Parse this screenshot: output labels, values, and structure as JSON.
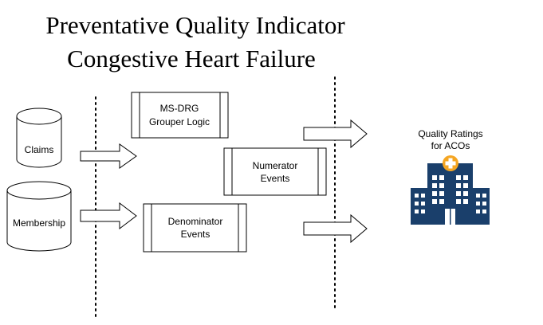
{
  "title": {
    "line1": "Preventative Quality Indicator",
    "line2": "Congestive Heart Failure"
  },
  "inputs": {
    "claims": "Claims",
    "membership": "Membership"
  },
  "processes": {
    "grouper": {
      "line1": "MS-DRG",
      "line2": "Grouper Logic"
    },
    "numerator": {
      "line1": "Numerator",
      "line2": "Events"
    },
    "denominator": {
      "line1": "Denominator",
      "line2": "Events"
    }
  },
  "output": {
    "line1": "Quality Ratings",
    "line2": "for ACOs",
    "icon": "hospital-icon",
    "icon_color": "#1a3f6b",
    "accent_color": "#f5a623"
  }
}
